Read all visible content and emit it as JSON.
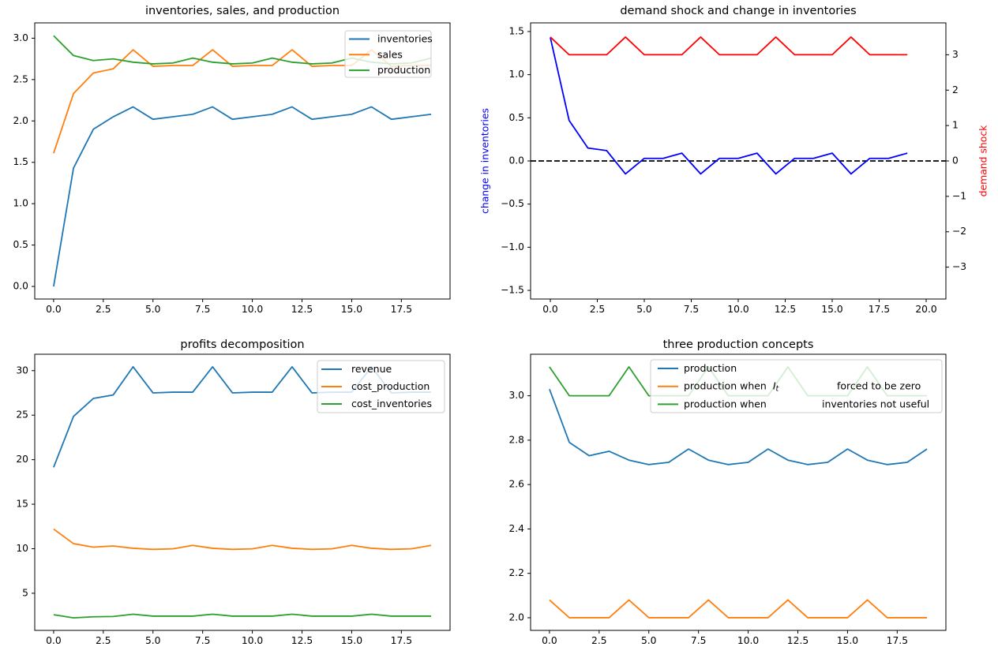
{
  "figure": {
    "background": "#ffffff",
    "colors": {
      "mpl_blue": "#1f77b4",
      "mpl_orange": "#ff7f0e",
      "mpl_green": "#2ca02c",
      "pure_blue": "#0000ff",
      "pure_red": "#ff0000",
      "black": "#000000",
      "legend_border": "#cccccc"
    }
  },
  "chart_data": [
    {
      "id": "inventories-sales-production",
      "type": "line",
      "title": "inventories, sales, and production",
      "x": [
        0,
        1,
        2,
        3,
        4,
        5,
        6,
        7,
        8,
        9,
        10,
        11,
        12,
        13,
        14,
        15,
        16,
        17,
        18,
        19
      ],
      "xlim": [
        -0.95,
        19.95
      ],
      "ylim": [
        -0.152,
        3.185
      ],
      "xticks": [
        0,
        2.5,
        5,
        7.5,
        10,
        12.5,
        15,
        17.5
      ],
      "xtick_labels": [
        "0.0",
        "2.5",
        "5.0",
        "7.5",
        "10.0",
        "12.5",
        "15.0",
        "17.5"
      ],
      "yticks": [
        0,
        0.5,
        1,
        1.5,
        2,
        2.5,
        3
      ],
      "ytick_labels": [
        "0.0",
        "0.5",
        "1.0",
        "1.5",
        "2.0",
        "2.5",
        "3.0"
      ],
      "grid": false,
      "series": [
        {
          "name": "inventories",
          "color": "#1f77b4",
          "values": [
            0.0,
            1.43,
            1.9,
            2.05,
            2.17,
            2.02,
            2.05,
            2.08,
            2.17,
            2.02,
            2.05,
            2.08,
            2.17,
            2.02,
            2.05,
            2.08,
            2.17,
            2.02,
            2.05,
            2.08
          ]
        },
        {
          "name": "sales",
          "color": "#ff7f0e",
          "values": [
            1.61,
            2.33,
            2.58,
            2.63,
            2.86,
            2.66,
            2.67,
            2.67,
            2.86,
            2.66,
            2.67,
            2.67,
            2.86,
            2.66,
            2.67,
            2.67,
            2.86,
            2.66,
            2.67,
            2.67
          ]
        },
        {
          "name": "production",
          "color": "#2ca02c",
          "values": [
            3.03,
            2.79,
            2.73,
            2.75,
            2.71,
            2.69,
            2.7,
            2.76,
            2.71,
            2.69,
            2.7,
            2.76,
            2.71,
            2.69,
            2.7,
            2.76,
            2.71,
            2.69,
            2.7,
            2.76
          ]
        }
      ],
      "legend": {
        "position": "upper right",
        "entries": [
          {
            "label_parts": [
              "inventories"
            ],
            "color": "#1f77b4"
          },
          {
            "label_parts": [
              "sales"
            ],
            "color": "#ff7f0e"
          },
          {
            "label_parts": [
              "production"
            ],
            "color": "#2ca02c"
          }
        ]
      }
    },
    {
      "id": "demand-shock-and-change-in-inventories",
      "type": "line",
      "title": "demand shock and change in inventories",
      "x": [
        0,
        1,
        2,
        3,
        4,
        5,
        6,
        7,
        8,
        9,
        10,
        11,
        12,
        13,
        14,
        15,
        16,
        17,
        18,
        19
      ],
      "xlim": [
        -1.05,
        21.05
      ],
      "ylim": [
        -1.6,
        1.6
      ],
      "ylim_right": [
        -3.9,
        3.9
      ],
      "xticks": [
        0,
        2.5,
        5,
        7.5,
        10,
        12.5,
        15,
        17.5,
        20
      ],
      "xtick_labels": [
        "0.0",
        "2.5",
        "5.0",
        "7.5",
        "10.0",
        "12.5",
        "15.0",
        "17.5",
        "20.0"
      ],
      "yticks": [
        -1.5,
        -1.0,
        -0.5,
        0,
        0.5,
        1.0,
        1.5
      ],
      "ytick_labels": [
        "−1.5",
        "−1.0",
        "−0.5",
        "0.0",
        "0.5",
        "1.0",
        "1.5"
      ],
      "yticks_right": [
        -3,
        -2,
        -1,
        0,
        1,
        2,
        3
      ],
      "ytick_labels_right": [
        "−3",
        "−2",
        "−1",
        "0",
        "1",
        "2",
        "3"
      ],
      "ylabel_left": {
        "text": "change in inventories",
        "color": "#0000ff"
      },
      "ylabel_right": {
        "text": "demand shock",
        "color": "#ff0000"
      },
      "hline": {
        "y": 0,
        "style": "dashed",
        "color": "#000000"
      },
      "grid": false,
      "series": [
        {
          "name": "change in inventories",
          "color": "#0000ff",
          "axis": "left",
          "values": [
            1.43,
            0.47,
            0.15,
            0.12,
            -0.15,
            0.03,
            0.03,
            0.09,
            -0.15,
            0.03,
            0.03,
            0.09,
            -0.15,
            0.03,
            0.03,
            0.09,
            -0.15,
            0.03,
            0.03,
            0.09
          ]
        },
        {
          "name": "demand shock",
          "color": "#ff0000",
          "axis": "right",
          "values": [
            3.5,
            3,
            3,
            3,
            3.5,
            3,
            3,
            3,
            3.5,
            3,
            3,
            3,
            3.5,
            3,
            3,
            3,
            3.5,
            3,
            3,
            3
          ]
        }
      ],
      "legend": null
    },
    {
      "id": "profits-decomposition",
      "type": "line",
      "title": "profits decomposition",
      "x": [
        0,
        1,
        2,
        3,
        4,
        5,
        6,
        7,
        8,
        9,
        10,
        11,
        12,
        13,
        14,
        15,
        16,
        17,
        18,
        19
      ],
      "xlim": [
        -0.95,
        19.95
      ],
      "ylim": [
        0.83,
        31.84
      ],
      "xticks": [
        0,
        2.5,
        5,
        7.5,
        10,
        12.5,
        15,
        17.5
      ],
      "xtick_labels": [
        "0.0",
        "2.5",
        "5.0",
        "7.5",
        "10.0",
        "12.5",
        "15.0",
        "17.5"
      ],
      "yticks": [
        5,
        10,
        15,
        20,
        25,
        30
      ],
      "ytick_labels": [
        "5",
        "10",
        "15",
        "20",
        "25",
        "30"
      ],
      "grid": false,
      "series": [
        {
          "name": "revenue",
          "color": "#1f77b4",
          "values": [
            19.14,
            24.86,
            26.88,
            27.27,
            30.43,
            27.5,
            27.58,
            27.58,
            30.43,
            27.5,
            27.58,
            27.58,
            30.43,
            27.5,
            27.58,
            27.58,
            30.43,
            27.5,
            27.58,
            27.58
          ]
        },
        {
          "name": "cost_production",
          "color": "#ff7f0e",
          "values": [
            12.21,
            10.57,
            10.18,
            10.31,
            10.05,
            9.93,
            9.99,
            10.38,
            10.05,
            9.93,
            9.99,
            10.38,
            10.05,
            9.93,
            9.99,
            10.38,
            10.05,
            9.93,
            9.99,
            10.38
          ]
        },
        {
          "name": "cost_inventories",
          "color": "#2ca02c",
          "values": [
            2.59,
            2.24,
            2.36,
            2.39,
            2.65,
            2.43,
            2.43,
            2.43,
            2.65,
            2.43,
            2.43,
            2.43,
            2.65,
            2.43,
            2.43,
            2.43,
            2.65,
            2.43,
            2.43,
            2.43
          ]
        }
      ],
      "legend": {
        "position": "upper right",
        "entries": [
          {
            "label_parts": [
              "revenue"
            ],
            "color": "#1f77b4"
          },
          {
            "label_parts": [
              "cost_production"
            ],
            "color": "#ff7f0e"
          },
          {
            "label_parts": [
              "cost_inventories"
            ],
            "color": "#2ca02c"
          }
        ]
      }
    },
    {
      "id": "three-production-concepts",
      "type": "line",
      "title": "three production concepts",
      "x": [
        0,
        1,
        2,
        3,
        4,
        5,
        6,
        7,
        8,
        9,
        10,
        11,
        12,
        13,
        14,
        15,
        16,
        17,
        18,
        19
      ],
      "xlim": [
        -0.95,
        19.95
      ],
      "ylim": [
        1.943,
        3.187
      ],
      "xticks": [
        0,
        2.5,
        5,
        7.5,
        10,
        12.5,
        15,
        17.5
      ],
      "xtick_labels": [
        "0.0",
        "2.5",
        "5.0",
        "7.5",
        "10.0",
        "12.5",
        "15.0",
        "17.5"
      ],
      "yticks": [
        2.0,
        2.2,
        2.4,
        2.6,
        2.8,
        3.0
      ],
      "ytick_labels": [
        "2.0",
        "2.2",
        "2.4",
        "2.6",
        "2.8",
        "3.0"
      ],
      "grid": false,
      "series": [
        {
          "name": "production",
          "color": "#1f77b4",
          "values": [
            3.03,
            2.79,
            2.73,
            2.75,
            2.71,
            2.69,
            2.7,
            2.76,
            2.71,
            2.69,
            2.7,
            2.76,
            2.71,
            2.69,
            2.7,
            2.76,
            2.71,
            2.69,
            2.7,
            2.76
          ]
        },
        {
          "name": "production when I_t forced to be zero",
          "color": "#ff7f0e",
          "values": [
            2.08,
            2.0,
            2.0,
            2.0,
            2.08,
            2.0,
            2.0,
            2.0,
            2.08,
            2.0,
            2.0,
            2.0,
            2.08,
            2.0,
            2.0,
            2.0,
            2.08,
            2.0,
            2.0,
            2.0
          ]
        },
        {
          "name": "production when inventories not useful",
          "color": "#2ca02c",
          "values": [
            3.13,
            3.0,
            3.0,
            3.0,
            3.13,
            3.0,
            3.0,
            3.0,
            3.13,
            3.0,
            3.0,
            3.0,
            3.13,
            3.0,
            3.0,
            3.0,
            3.13,
            3.0,
            3.0,
            3.0
          ]
        }
      ],
      "legend": {
        "position": "upper center",
        "entries": [
          {
            "label_parts": [
              "production"
            ],
            "color": "#1f77b4"
          },
          {
            "label_parts": [
              "production when  ",
              "$I_t$",
              "forced to be zero"
            ],
            "color": "#ff7f0e"
          },
          {
            "label_parts": [
              "production when",
              "inventories not useful"
            ],
            "color": "#2ca02c"
          }
        ]
      }
    }
  ]
}
